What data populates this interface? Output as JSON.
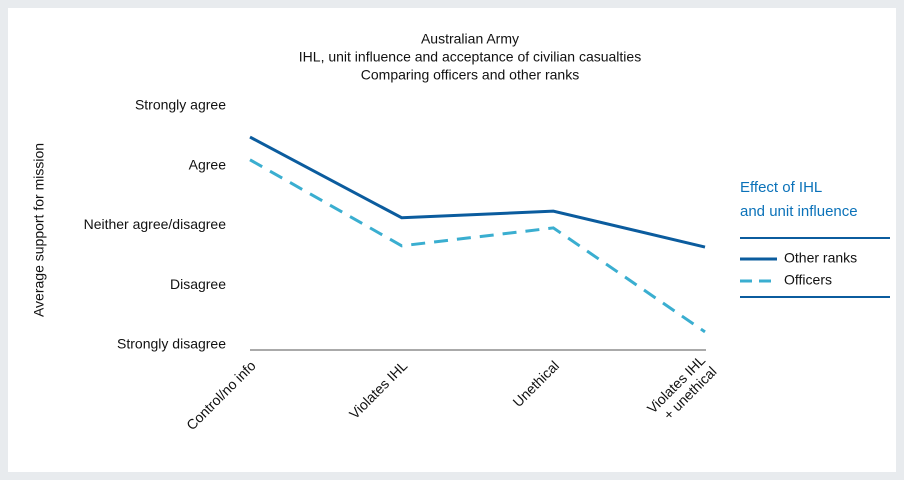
{
  "chart_data": {
    "type": "line",
    "title": "Australian Army",
    "subtitle": [
      "IHL, unit influence and acceptance of civilian casualties",
      "Comparing officers and other ranks"
    ],
    "y_label": "Average support for mission",
    "categories": [
      "Control/no info",
      "Violates IHL",
      "Unethical",
      "Violates IHL\n+ unethical"
    ],
    "series": [
      {
        "name": "Other ranks",
        "color": "#0b5c9e",
        "dash": "solid",
        "values": [
          4.53,
          3.18,
          3.29,
          2.69
        ]
      },
      {
        "name": "Officers",
        "color": "#3aaed0",
        "dash": "dashed",
        "values": [
          4.15,
          2.71,
          3.01,
          1.27
        ]
      }
    ],
    "ylim": [
      1,
      5
    ],
    "yticks": [
      {
        "value": 1,
        "label": "Strongly disagree"
      },
      {
        "value": 2,
        "label": "Disagree"
      },
      {
        "value": 3,
        "label": "Neither agree/disagree"
      },
      {
        "value": 4,
        "label": "Agree"
      },
      {
        "value": 5,
        "label": "Strongly agree"
      }
    ],
    "grid": false,
    "legend_title": [
      "Effect of IHL",
      "and unit influence"
    ],
    "legend_position": "right"
  }
}
